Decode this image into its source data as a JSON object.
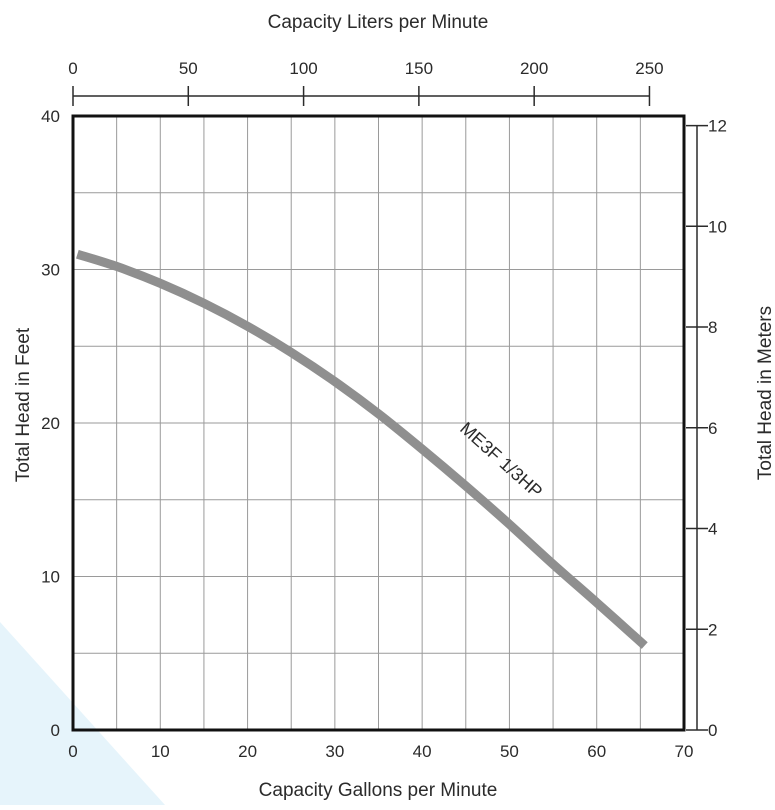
{
  "chart_data": {
    "type": "line",
    "top_axis_label": "Capacity Liters per Minute",
    "top_ticks": [
      0,
      50,
      100,
      150,
      200,
      250
    ],
    "xlabel": "Capacity Gallons per Minute",
    "x_ticks": [
      0,
      10,
      20,
      30,
      40,
      50,
      60,
      70
    ],
    "xlim": [
      0,
      70
    ],
    "ylabel": "Total Head in Feet",
    "y_ticks": [
      0,
      10,
      20,
      30,
      40
    ],
    "ylim": [
      0,
      40
    ],
    "right_axis_label": "Total Head in Meters",
    "right_ticks": [
      0,
      2,
      4,
      6,
      8,
      10,
      12
    ],
    "right_ylim": [
      0,
      12.19
    ],
    "grid": true,
    "series": [
      {
        "name": "ME3F 1/3HP",
        "color": "#8f8f8f",
        "x": [
          0.5,
          5,
          10,
          15,
          20,
          25,
          30,
          35,
          40,
          45,
          50,
          55,
          60,
          65.5
        ],
        "y": [
          31,
          30.2,
          29.1,
          27.8,
          26.3,
          24.6,
          22.7,
          20.6,
          18.3,
          15.9,
          13.4,
          10.8,
          8.3,
          5.5
        ]
      }
    ]
  }
}
